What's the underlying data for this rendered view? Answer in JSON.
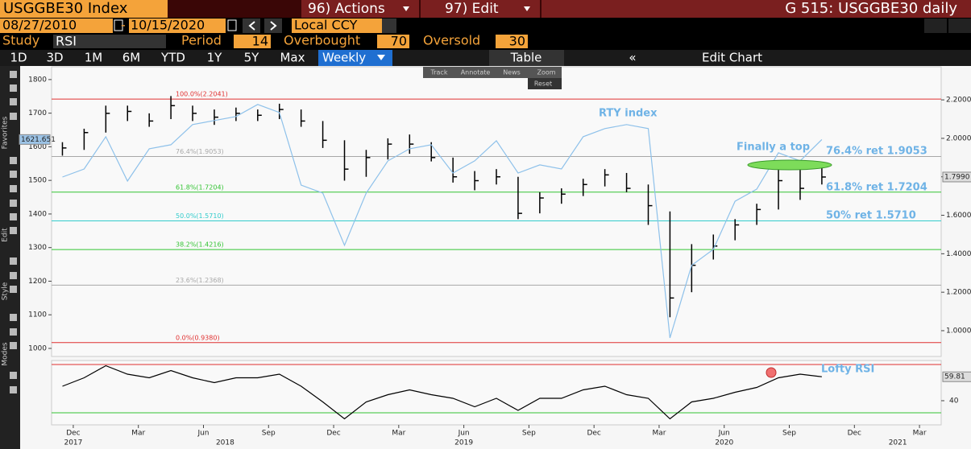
{
  "toolbar": {
    "ticker": "USGGBE30 Index",
    "actions": "96) Actions",
    "edit": "97) Edit",
    "title": "G 515: USGGBE30 daily",
    "start_date": "08/27/2010",
    "end_date": "10/15/2020",
    "currency": "Local CCY",
    "study_label": "Study",
    "study": "RSI",
    "period_label": "Period",
    "period": 14,
    "overbought_label": "Overbought",
    "overbought": 70,
    "oversold_label": "Oversold",
    "oversold": 30,
    "ranges": [
      "1D",
      "3D",
      "1M",
      "6M",
      "YTD",
      "1Y",
      "5Y",
      "Max"
    ],
    "frequency": "Weekly",
    "table": "Table",
    "edit_chart": "Edit Chart",
    "menu": [
      "Track",
      "Annotate",
      "News",
      "Zoom",
      "Reset"
    ],
    "sidebar": [
      "Favorites",
      "Edit",
      "Style",
      "Modes"
    ]
  },
  "chart_data": [
    {
      "type": "ohlc",
      "x": [
        "2017-11",
        "2017-12",
        "2018-01",
        "2018-02",
        "2018-03",
        "2018-04",
        "2018-05",
        "2018-06",
        "2018-07",
        "2018-08",
        "2018-09",
        "2018-10",
        "2018-11",
        "2018-12",
        "2019-01",
        "2019-02",
        "2019-03",
        "2019-04",
        "2019-05",
        "2019-06",
        "2019-07",
        "2019-08",
        "2019-09",
        "2019-10",
        "2019-11",
        "2019-12",
        "2020-01",
        "2020-02",
        "2020-03",
        "2020-04",
        "2020-05",
        "2020-06",
        "2020-07",
        "2020-08",
        "2020-09",
        "2020-10"
      ],
      "xlim": [
        "2017-11",
        "2021-04"
      ],
      "ylim": [
        976,
        1838
      ],
      "yticks": [
        1000,
        1100,
        1200,
        1300,
        1400,
        1500,
        1600,
        1700,
        1800
      ],
      "y2lim": [
        0.866,
        2.372
      ],
      "y2ticks": [
        {
          "value": 1.0,
          "label": "1.0000"
        },
        {
          "value": 1.2,
          "label": "1.2000"
        },
        {
          "value": 1.4,
          "label": "1.4000"
        },
        {
          "value": 1.6,
          "label": "1.6000"
        },
        {
          "value": 1.8,
          "label": "1.8000"
        },
        {
          "value": 2.0,
          "label": "2.0000"
        },
        {
          "value": 2.2,
          "label": "2.2000"
        }
      ],
      "series": [
        {
          "type": "ohlc",
          "axis": "y2",
          "color": "#000000",
          "last_label": "1.7990",
          "values": [
            1.95,
            2.03,
            2.13,
            2.14,
            2.09,
            2.17,
            2.13,
            2.11,
            2.13,
            2.12,
            2.15,
            2.09,
            1.99,
            1.84,
            1.9,
            1.97,
            1.97,
            1.9,
            1.8,
            1.78,
            1.8,
            1.61,
            1.69,
            1.71,
            1.76,
            1.81,
            1.74,
            1.65,
            1.17,
            1.34,
            1.44,
            1.55,
            1.63,
            1.78,
            1.74,
            1.799
          ],
          "high": [
            1.98,
            2.05,
            2.17,
            2.17,
            2.13,
            2.22,
            2.17,
            2.15,
            2.16,
            2.15,
            2.18,
            2.15,
            2.09,
            1.99,
            1.94,
            2.0,
            2.02,
            1.98,
            1.9,
            1.83,
            1.84,
            1.8,
            1.72,
            1.74,
            1.79,
            1.84,
            1.82,
            1.76,
            1.62,
            1.45,
            1.5,
            1.58,
            1.66,
            1.85,
            1.86,
            1.85
          ],
          "low": [
            1.91,
            1.94,
            2.03,
            2.09,
            2.06,
            2.1,
            2.09,
            2.07,
            2.09,
            2.09,
            2.1,
            2.06,
            1.95,
            1.78,
            1.8,
            1.89,
            1.92,
            1.88,
            1.77,
            1.73,
            1.76,
            1.58,
            1.61,
            1.66,
            1.7,
            1.75,
            1.72,
            1.55,
            1.07,
            1.2,
            1.37,
            1.47,
            1.55,
            1.63,
            1.68,
            1.76
          ]
        },
        {
          "type": "line",
          "axis": "y",
          "color": "#8ec1ea",
          "values": [
            1510,
            1534,
            1630,
            1498,
            1594,
            1606,
            1666,
            1678,
            1690,
            1726,
            1702,
            1486,
            1462,
            1307,
            1462,
            1558,
            1594,
            1606,
            1522,
            1558,
            1618,
            1522,
            1546,
            1534,
            1630,
            1654,
            1666,
            1654,
            1031,
            1247,
            1295,
            1438,
            1474,
            1582,
            1558,
            1621.651
          ]
        }
      ],
      "levels": [
        {
          "value": 2.2041,
          "label": "100.0%(2.2041)",
          "color": "#e03030"
        },
        {
          "value": 1.9053,
          "label": "76.4%(1.9053)",
          "color": "#a8a8a8"
        },
        {
          "value": 1.7204,
          "label": "61.8%(1.7204)",
          "color": "#33c433"
        },
        {
          "value": 1.571,
          "label": "50.0%(1.5710)",
          "color": "#33cccc"
        },
        {
          "value": 1.4216,
          "label": "38.2%(1.4216)",
          "color": "#33c433"
        },
        {
          "value": 1.2368,
          "label": "23.6%(1.2368)",
          "color": "#a8a8a8"
        },
        {
          "value": 0.938,
          "label": "0.0%(0.9380)",
          "color": "#e03030"
        }
      ],
      "annotations": [
        "RTY index",
        "Finally a top",
        "76.4% ret 1.9053",
        "61.8% ret 1.7204",
        "50% ret 1.5710"
      ]
    },
    {
      "type": "line",
      "x": [
        "2017-11",
        "2017-12",
        "2018-01",
        "2018-02",
        "2018-03",
        "2018-04",
        "2018-05",
        "2018-06",
        "2018-07",
        "2018-08",
        "2018-09",
        "2018-10",
        "2018-11",
        "2018-12",
        "2019-01",
        "2019-02",
        "2019-03",
        "2019-04",
        "2019-05",
        "2019-06",
        "2019-07",
        "2019-08",
        "2019-09",
        "2019-10",
        "2019-11",
        "2019-12",
        "2020-01",
        "2020-02",
        "2020-03",
        "2020-04",
        "2020-05",
        "2020-06",
        "2020-07",
        "2020-08",
        "2020-09",
        "2020-10"
      ],
      "xlim": [
        "2017-11",
        "2021-04"
      ],
      "ylim": [
        20,
        73.3
      ],
      "yticks": [
        40
      ],
      "series": [
        {
          "color": "#000000",
          "values": [
            52,
            59,
            69,
            62,
            59,
            65,
            59,
            55,
            59,
            59,
            62,
            52,
            39,
            25,
            39,
            45,
            49,
            45,
            42,
            35,
            42,
            32,
            42,
            42,
            49,
            52,
            45,
            42,
            25,
            39,
            42,
            47,
            51,
            59,
            62,
            59.81
          ]
        }
      ],
      "xticks": [
        {
          "value": "2017-12",
          "label": "Dec"
        },
        {
          "value": "2018-03",
          "label": "Mar"
        },
        {
          "value": "2018-06",
          "label": "Jun"
        },
        {
          "value": "2018-09",
          "label": "Sep"
        },
        {
          "value": "2018-12",
          "label": "Dec"
        },
        {
          "value": "2019-03",
          "label": "Mar"
        },
        {
          "value": "2019-06",
          "label": "Jun"
        },
        {
          "value": "2019-09",
          "label": "Sep"
        },
        {
          "value": "2019-12",
          "label": "Dec"
        },
        {
          "value": "2020-03",
          "label": "Mar"
        },
        {
          "value": "2020-06",
          "label": "Jun"
        },
        {
          "value": "2020-09",
          "label": "Sep"
        },
        {
          "value": "2020-12",
          "label": "Dec"
        },
        {
          "value": "2021-03",
          "label": "Mar"
        }
      ],
      "year_ticks": [
        {
          "value": "2017-12",
          "label": "2017"
        },
        {
          "value": "2018-07",
          "label": "2018"
        },
        {
          "value": "2019-06",
          "label": "2019"
        },
        {
          "value": "2020-06",
          "label": "2020"
        },
        {
          "value": "2021-02",
          "label": "2021"
        }
      ],
      "annotations": [
        "Lofty RSI"
      ]
    }
  ]
}
